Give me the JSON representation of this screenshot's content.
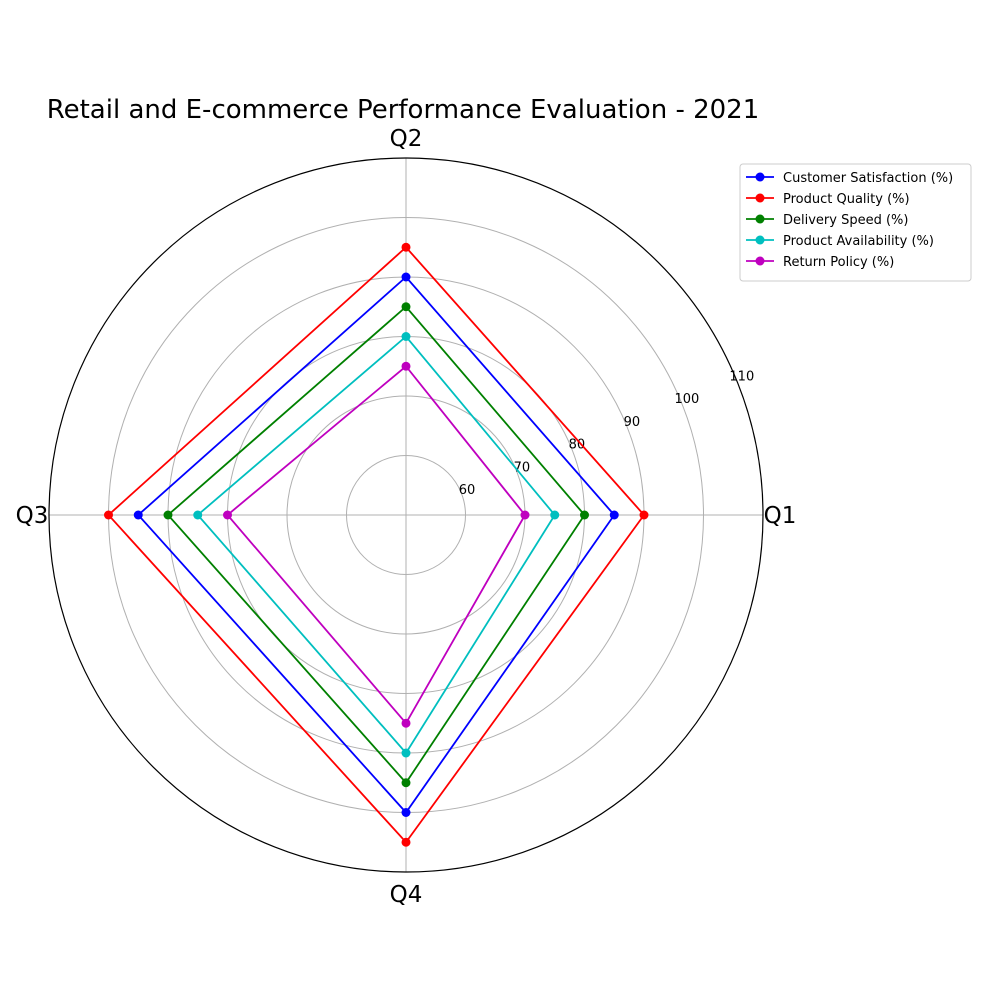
{
  "chart_data": {
    "type": "radar",
    "title": "Retail and E-commerce Performance Evaluation - 2021",
    "categories": [
      "Q1",
      "Q2",
      "Q3",
      "Q4"
    ],
    "rlim": [
      50,
      110
    ],
    "rticks": [
      60,
      70,
      80,
      90,
      100,
      110
    ],
    "grid": true,
    "legend_position": "top-right",
    "series": [
      {
        "name": "Customer Satisfaction (%)",
        "color": "#0000ff",
        "values": [
          85,
          90,
          95,
          100
        ]
      },
      {
        "name": "Product Quality (%)",
        "color": "#ff0000",
        "values": [
          90,
          95,
          100,
          105
        ]
      },
      {
        "name": "Delivery Speed (%)",
        "color": "#008000",
        "values": [
          80,
          85,
          90,
          95
        ]
      },
      {
        "name": "Product Availability (%)",
        "color": "#00bfbf",
        "values": [
          75,
          80,
          85,
          90
        ]
      },
      {
        "name": "Return Policy (%)",
        "color": "#bf00bf",
        "values": [
          70,
          75,
          80,
          85
        ]
      }
    ]
  }
}
